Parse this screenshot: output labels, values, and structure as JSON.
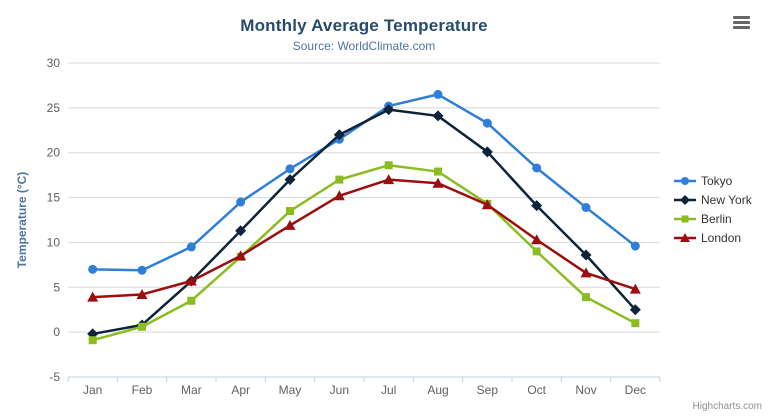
{
  "icons": {
    "context_menu": "hamburger-menu"
  },
  "credits_label": "Highcharts.com",
  "chart_data": {
    "type": "line",
    "title": "Monthly Average Temperature",
    "subtitle": "Source: WorldClimate.com",
    "xlabel": "",
    "ylabel": "Temperature (°C)",
    "categories": [
      "Jan",
      "Feb",
      "Mar",
      "Apr",
      "May",
      "Jun",
      "Jul",
      "Aug",
      "Sep",
      "Oct",
      "Nov",
      "Dec"
    ],
    "ylim": [
      -5,
      30
    ],
    "yticks": [
      -5,
      0,
      5,
      10,
      15,
      20,
      25,
      30
    ],
    "grid": true,
    "legend_position": "right",
    "series": [
      {
        "name": "Tokyo",
        "color": "#2f7ed8",
        "marker": "circle",
        "values": [
          7.0,
          6.9,
          9.5,
          14.5,
          18.2,
          21.5,
          25.2,
          26.5,
          23.3,
          18.3,
          13.9,
          9.6
        ]
      },
      {
        "name": "New York",
        "color": "#0d233a",
        "marker": "diamond",
        "values": [
          -0.2,
          0.8,
          5.7,
          11.3,
          17.0,
          22.0,
          24.8,
          24.1,
          20.1,
          14.1,
          8.6,
          2.5
        ]
      },
      {
        "name": "Berlin",
        "color": "#8bbc21",
        "marker": "square",
        "values": [
          -0.9,
          0.6,
          3.5,
          8.4,
          13.5,
          17.0,
          18.6,
          17.9,
          14.3,
          9.0,
          3.9,
          1.0
        ]
      },
      {
        "name": "London",
        "color": "#9c0d0d",
        "marker": "triangle",
        "values": [
          3.9,
          4.2,
          5.7,
          8.5,
          11.9,
          15.2,
          17.0,
          16.6,
          14.2,
          10.3,
          6.6,
          4.8
        ]
      }
    ],
    "style": {
      "title_color": "#274b6d",
      "subtitle_color": "#4d759e",
      "axis_label_color": "#606060",
      "axis_title_color": "#4d759e",
      "grid_color": "#d8d8d8",
      "axis_line_color": "#c0d0e0",
      "legend_text_color": "#333333",
      "credits_color": "#909090"
    }
  }
}
